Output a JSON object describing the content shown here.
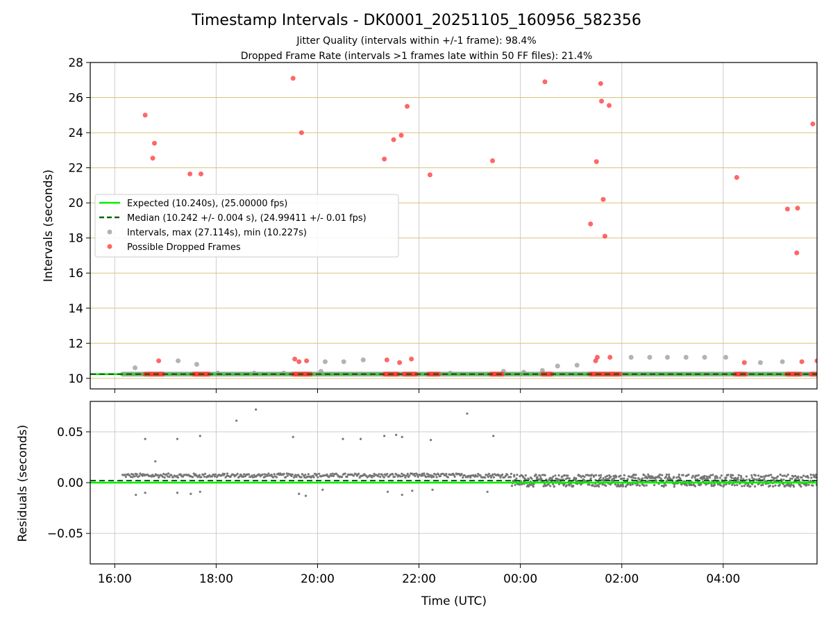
{
  "title": "Timestamp Intervals - DK0001_20251105_160956_582356",
  "subtitle_lines": [
    "Jitter Quality (intervals within +/-1 frame): 98.4%",
    "Dropped Frame Rate (intervals >1 frames late within 50 FF files): 21.4%"
  ],
  "colors": {
    "expected": "#00ee00",
    "median": "#006400",
    "intervals": "#a0a0a0",
    "dropped": "#ff4040",
    "residuals": "#777777",
    "hgrid_top": "#d9c27a",
    "grid": "#cccccc"
  },
  "chart_data": [
    {
      "type": "scatter",
      "ylabel": "Intervals (seconds)",
      "xlabel": "",
      "xlim": [
        "2025-11-05 15:31",
        "2025-11-06 05:51"
      ],
      "ylim": [
        9.4,
        28
      ],
      "yticks": [
        10,
        12,
        14,
        16,
        18,
        20,
        22,
        24,
        26,
        28
      ],
      "legend_position": "center-left",
      "grid": "horizontal lines golden, vertical lines grey",
      "expected_interval": 10.24,
      "median_interval": 10.242,
      "series": [
        {
          "name": "Expected (10.240s), (25.00000 fps)",
          "style": "line",
          "x": [
            "2025-11-05 15:31",
            "2025-11-06 05:51"
          ],
          "y": [
            10.24,
            10.24
          ]
        },
        {
          "name": "Median (10.242 +/- 0.004 s), (24.99411 +/- 0.01 fps)",
          "style": "dashed-line",
          "x": [
            "2025-11-05 15:31",
            "2025-11-06 05:51"
          ],
          "y": [
            10.242,
            10.242
          ]
        },
        {
          "name": "Intervals, max (27.114s), min (10.227s)",
          "style": "points",
          "dense_band": {
            "y": 10.24,
            "x_range": [
              "2025-11-05 16:09",
              "2025-11-06 05:51"
            ]
          },
          "points": [
            [
              "2025-11-05 16:24",
              10.6
            ],
            [
              "2025-11-05 17:15",
              11.0
            ],
            [
              "2025-11-05 17:37",
              10.8
            ],
            [
              "2025-11-05 18:02",
              10.3
            ],
            [
              "2025-11-05 18:45",
              10.3
            ],
            [
              "2025-11-05 19:20",
              10.3
            ],
            [
              "2025-11-05 20:04",
              10.4
            ],
            [
              "2025-11-05 20:09",
              10.95
            ],
            [
              "2025-11-05 20:31",
              10.95
            ],
            [
              "2025-11-05 20:54",
              11.05
            ],
            [
              "2025-11-05 22:37",
              10.3
            ],
            [
              "2025-11-05 23:40",
              10.4
            ],
            [
              "2025-11-06 00:04",
              10.35
            ],
            [
              "2025-11-06 00:26",
              10.45
            ],
            [
              "2025-11-06 00:44",
              10.7
            ],
            [
              "2025-11-06 01:07",
              10.75
            ],
            [
              "2025-11-06 02:11",
              11.2
            ],
            [
              "2025-11-06 02:33",
              11.2
            ],
            [
              "2025-11-06 02:54",
              11.2
            ],
            [
              "2025-11-06 03:16",
              11.2
            ],
            [
              "2025-11-06 03:38",
              11.2
            ],
            [
              "2025-11-06 04:03",
              11.2
            ],
            [
              "2025-11-06 04:44",
              10.9
            ],
            [
              "2025-11-06 05:10",
              10.95
            ]
          ]
        },
        {
          "name": "Possible Dropped Frames",
          "style": "points",
          "points": [
            [
              "2025-11-05 16:36",
              25.0
            ],
            [
              "2025-11-05 16:45",
              22.55
            ],
            [
              "2025-11-05 16:47",
              23.4
            ],
            [
              "2025-11-05 16:52",
              11.0
            ],
            [
              "2025-11-05 17:29",
              21.65
            ],
            [
              "2025-11-05 17:42",
              21.65
            ],
            [
              "2025-11-05 19:31",
              27.1
            ],
            [
              "2025-11-05 19:33",
              11.1
            ],
            [
              "2025-11-05 19:38",
              10.95
            ],
            [
              "2025-11-05 19:41",
              24.0
            ],
            [
              "2025-11-05 19:47",
              11.0
            ],
            [
              "2025-11-05 21:19",
              22.5
            ],
            [
              "2025-11-05 21:22",
              11.05
            ],
            [
              "2025-11-05 21:30",
              23.6
            ],
            [
              "2025-11-05 21:37",
              10.9
            ],
            [
              "2025-11-05 21:39",
              23.85
            ],
            [
              "2025-11-05 21:46",
              25.5
            ],
            [
              "2025-11-05 21:51",
              11.1
            ],
            [
              "2025-11-05 22:13",
              21.6
            ],
            [
              "2025-11-05 23:27",
              22.4
            ],
            [
              "2025-11-06 00:29",
              26.9
            ],
            [
              "2025-11-06 01:23",
              18.8
            ],
            [
              "2025-11-06 01:29",
              11.0
            ],
            [
              "2025-11-06 01:30",
              22.35
            ],
            [
              "2025-11-06 01:31",
              11.2
            ],
            [
              "2025-11-06 01:35",
              26.8
            ],
            [
              "2025-11-06 01:36",
              25.8
            ],
            [
              "2025-11-06 01:38",
              20.2
            ],
            [
              "2025-11-06 01:40",
              18.1
            ],
            [
              "2025-11-06 01:45",
              25.55
            ],
            [
              "2025-11-06 01:46",
              11.2
            ],
            [
              "2025-11-06 04:16",
              21.45
            ],
            [
              "2025-11-06 04:25",
              10.9
            ],
            [
              "2025-11-06 05:16",
              19.65
            ],
            [
              "2025-11-06 05:27",
              17.15
            ],
            [
              "2025-11-06 05:28",
              19.7
            ],
            [
              "2025-11-06 05:33",
              10.95
            ],
            [
              "2025-11-06 05:46",
              24.5
            ],
            [
              "2025-11-06 05:51",
              11.0
            ]
          ],
          "clusters_at_10_24": [
            [
              "2025-11-05 16:36",
              "2025-11-05 16:58"
            ],
            [
              "2025-11-05 17:33",
              "2025-11-05 17:52"
            ],
            [
              "2025-11-05 19:31",
              "2025-11-05 19:52"
            ],
            [
              "2025-11-05 21:19",
              "2025-11-05 21:36"
            ],
            [
              "2025-11-05 21:42",
              "2025-11-05 21:58"
            ],
            [
              "2025-11-05 22:11",
              "2025-11-05 22:24"
            ],
            [
              "2025-11-05 23:25",
              "2025-11-05 23:39"
            ],
            [
              "2025-11-06 00:26",
              "2025-11-06 00:38"
            ],
            [
              "2025-11-06 01:22",
              "2025-11-06 01:58"
            ],
            [
              "2025-11-06 04:14",
              "2025-11-06 04:27"
            ],
            [
              "2025-11-06 05:15",
              "2025-11-06 05:32"
            ],
            [
              "2025-11-06 05:44",
              "2025-11-06 05:51"
            ]
          ]
        }
      ]
    },
    {
      "type": "scatter",
      "ylabel": "Residuals (seconds)",
      "xlabel": "Time (UTC)",
      "xlim": [
        "2025-11-05 15:31",
        "2025-11-06 05:51"
      ],
      "ylim": [
        -0.08,
        0.08
      ],
      "yticks": [
        -0.05,
        0.0,
        0.05
      ],
      "ytick_labels": [
        "−0.05",
        "0.00",
        "0.05"
      ],
      "xticks": [
        "2025-11-05 16:00",
        "2025-11-05 18:00",
        "2025-11-05 20:00",
        "2025-11-05 22:00",
        "2025-11-06 00:00",
        "2025-11-06 02:00",
        "2025-11-06 04:00"
      ],
      "xtick_labels": [
        "16:00",
        "18:00",
        "20:00",
        "22:00",
        "00:00",
        "02:00",
        "04:00"
      ],
      "grid": "on",
      "expected_residual": 0.0,
      "median_residual": 0.002,
      "series": [
        {
          "name": "",
          "residual_band": [
            {
              "x_range": [
                "2025-11-05 16:09",
                "2025-11-05 23:50"
              ],
              "center": 0.007,
              "spread": 0.002
            },
            {
              "x_range": [
                "2025-11-05 23:50",
                "2025-11-06 05:51"
              ],
              "center": 0.002,
              "spread": 0.006
            }
          ],
          "outliers": [
            [
              "2025-11-05 16:36",
              0.043
            ],
            [
              "2025-11-05 16:48",
              0.021
            ],
            [
              "2025-11-05 17:14",
              0.043
            ],
            [
              "2025-11-05 17:41",
              0.046
            ],
            [
              "2025-11-05 18:24",
              0.061
            ],
            [
              "2025-11-05 18:47",
              0.072
            ],
            [
              "2025-11-05 19:31",
              0.045
            ],
            [
              "2025-11-05 20:30",
              0.043
            ],
            [
              "2025-11-05 20:51",
              0.043
            ],
            [
              "2025-11-05 21:19",
              0.046
            ],
            [
              "2025-11-05 21:33",
              0.047
            ],
            [
              "2025-11-05 21:40",
              0.045
            ],
            [
              "2025-11-05 22:14",
              0.042
            ],
            [
              "2025-11-05 22:57",
              0.068
            ],
            [
              "2025-11-05 23:28",
              0.046
            ],
            [
              "2025-11-05 16:25",
              -0.012
            ],
            [
              "2025-11-05 16:36",
              -0.01
            ],
            [
              "2025-11-05 17:14",
              -0.01
            ],
            [
              "2025-11-05 17:30",
              -0.011
            ],
            [
              "2025-11-05 17:41",
              -0.009
            ],
            [
              "2025-11-05 19:38",
              -0.011
            ],
            [
              "2025-11-05 19:46",
              -0.013
            ],
            [
              "2025-11-05 20:06",
              -0.007
            ],
            [
              "2025-11-05 21:23",
              -0.009
            ],
            [
              "2025-11-05 21:40",
              -0.012
            ],
            [
              "2025-11-05 21:52",
              -0.008
            ],
            [
              "2025-11-05 22:16",
              -0.007
            ],
            [
              "2025-11-05 23:21",
              -0.009
            ]
          ]
        }
      ]
    }
  ]
}
